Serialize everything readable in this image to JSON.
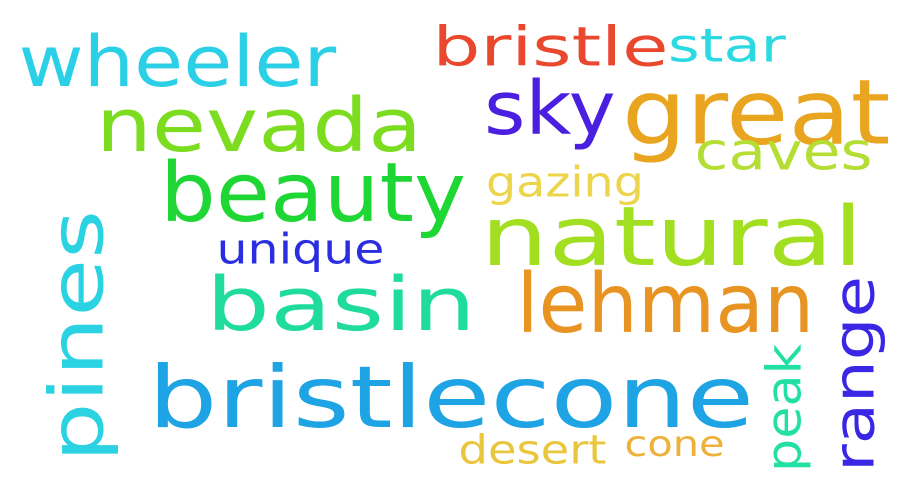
{
  "words": [
    {
      "id": "bristlecone",
      "text": "bristlecone",
      "color": "#1ea3e4",
      "orientation": "horizontal"
    },
    {
      "id": "natural",
      "text": "natural",
      "color": "#a2df20",
      "orientation": "horizontal"
    },
    {
      "id": "lehman",
      "text": "lehman",
      "color": "#e89423",
      "orientation": "horizontal"
    },
    {
      "id": "basin",
      "text": "basin",
      "color": "#1fdc9c",
      "orientation": "horizontal"
    },
    {
      "id": "beauty",
      "text": "beauty",
      "color": "#1ed735",
      "orientation": "horizontal"
    },
    {
      "id": "nevada",
      "text": "nevada",
      "color": "#7cdc20",
      "orientation": "horizontal"
    },
    {
      "id": "great",
      "text": "great",
      "color": "#e9a51f",
      "orientation": "horizontal"
    },
    {
      "id": "pines",
      "text": "pines",
      "color": "#2bd3e2",
      "orientation": "vertical"
    },
    {
      "id": "wheeler",
      "text": "wheeler",
      "color": "#2bd0e6",
      "orientation": "horizontal"
    },
    {
      "id": "sky",
      "text": "sky",
      "color": "#4b1fe0",
      "orientation": "horizontal"
    },
    {
      "id": "caves",
      "text": "caves",
      "color": "#b5de35",
      "orientation": "horizontal"
    },
    {
      "id": "range",
      "text": "range",
      "color": "#3a27e6",
      "orientation": "vertical"
    },
    {
      "id": "bristle",
      "text": "bristle",
      "color": "#e9482f",
      "orientation": "horizontal"
    },
    {
      "id": "star",
      "text": "star",
      "color": "#2bd9e2",
      "orientation": "horizontal"
    },
    {
      "id": "peak",
      "text": "peak",
      "color": "#22e0a4",
      "orientation": "vertical"
    },
    {
      "id": "unique",
      "text": "unique",
      "color": "#2b2ee0",
      "orientation": "horizontal"
    },
    {
      "id": "gazing",
      "text": "gazing",
      "color": "#ecd54a",
      "orientation": "horizontal"
    },
    {
      "id": "desert",
      "text": "desert",
      "color": "#e9c63c",
      "orientation": "horizontal"
    },
    {
      "id": "cone",
      "text": "cone",
      "color": "#eeb13a",
      "orientation": "horizontal"
    }
  ]
}
